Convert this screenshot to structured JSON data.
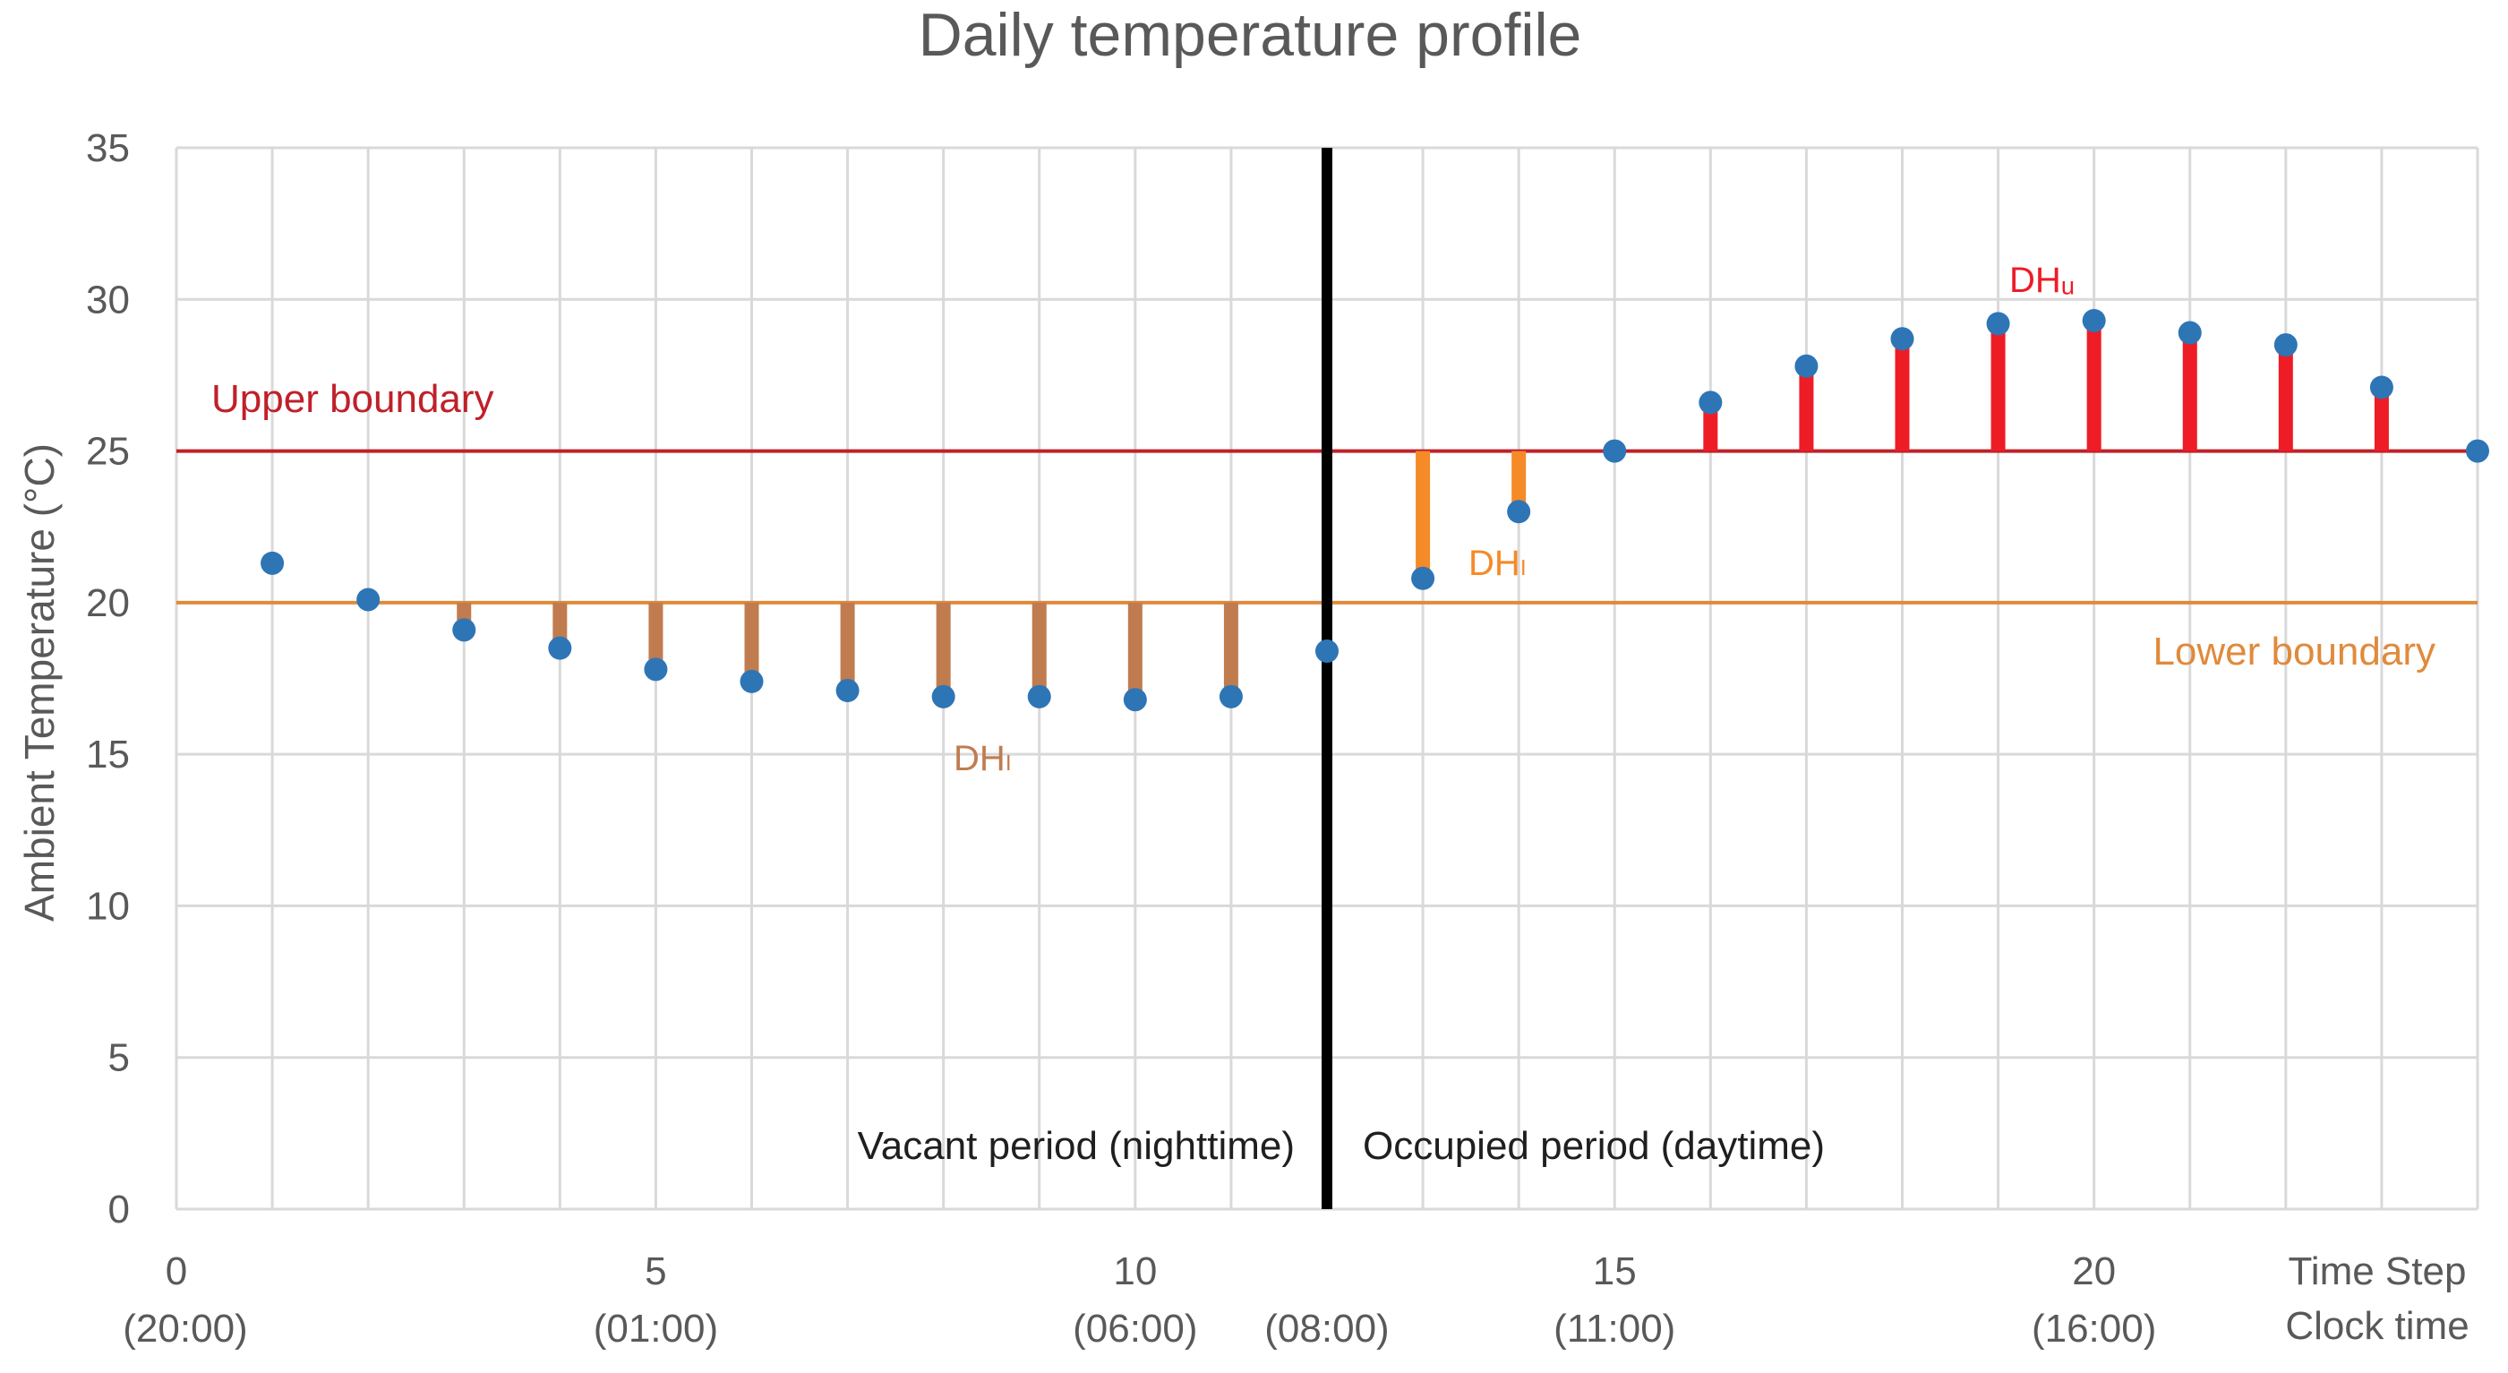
{
  "chart_data": {
    "type": "scatter",
    "title": "Daily temperature profile",
    "xlabel": "Time Step",
    "xlabel2": "Clock time",
    "ylabel": "Ambient Temperature (°C)",
    "xlim": [
      0,
      24
    ],
    "ylim": [
      0,
      35
    ],
    "yticks": [
      0,
      5,
      10,
      15,
      20,
      25,
      30,
      35
    ],
    "xticks": [
      0,
      5,
      10,
      15,
      20
    ],
    "clock_ticks": [
      {
        "x": 0,
        "label": "(20:00)"
      },
      {
        "x": 5,
        "label": "(01:00)"
      },
      {
        "x": 10,
        "label": "(06:00)"
      },
      {
        "x": 12,
        "label": "(08:00)"
      },
      {
        "x": 15,
        "label": "(11:00)"
      },
      {
        "x": 20,
        "label": "(16:00)"
      }
    ],
    "grid": true,
    "x": [
      1,
      2,
      3,
      4,
      5,
      6,
      7,
      8,
      9,
      10,
      11,
      12,
      13,
      14,
      15,
      16,
      17,
      18,
      19,
      20,
      21,
      22,
      23,
      24
    ],
    "values": [
      21.3,
      20.1,
      19.1,
      18.5,
      17.8,
      17.4,
      17.1,
      16.9,
      16.9,
      16.8,
      16.9,
      18.4,
      20.8,
      23.0,
      25.0,
      26.6,
      27.8,
      28.7,
      29.2,
      29.3,
      28.9,
      28.5,
      27.1,
      25.0
    ],
    "upper_boundary": {
      "value": 25,
      "label": "Upper boundary",
      "color": "#c0202a"
    },
    "lower_boundary": {
      "value": 20,
      "label": "Lower boundary",
      "color": "#e08a3c"
    },
    "period_divider": {
      "x": 12
    },
    "periods": {
      "vacant": "Vacant period (nighttime)",
      "occupied": "Occupied period (daytime)"
    },
    "deviation_labels": {
      "night_lower": "DHₗ",
      "day_lower": "DHₗ",
      "day_upper": "DHᵤ"
    },
    "colors": {
      "points": "#2e75b6",
      "night_bars": "#c07c4f",
      "day_lower_bars": "#f58a28",
      "day_upper_bars": "#ee1c25",
      "grid": "#d9d9d9"
    }
  }
}
